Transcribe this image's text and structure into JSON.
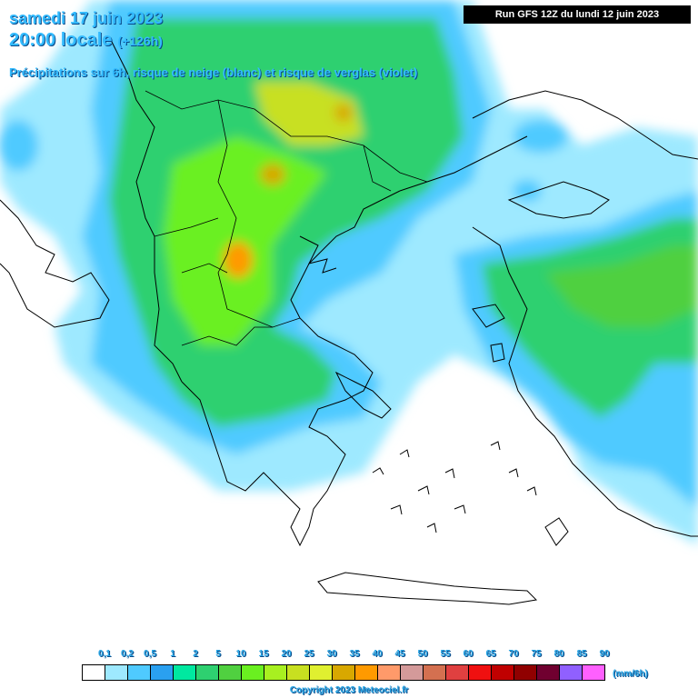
{
  "header": {
    "date_line": "samedi 17 juin 2023",
    "time_line": "20:00 locale",
    "time_offset": "(+126h)",
    "description": "Précipitations sur 6h, risque de neige (blanc) et risque de verglas (violet)",
    "run_info": "Run GFS 12Z du lundi 12 juin 2023"
  },
  "legend": {
    "ticks": [
      "0,1",
      "0,2",
      "0,5",
      "1",
      "2",
      "5",
      "10",
      "15",
      "20",
      "25",
      "30",
      "35",
      "40",
      "45",
      "50",
      "55",
      "60",
      "65",
      "70",
      "75",
      "80",
      "85",
      "90"
    ],
    "colors": [
      "#ffffff",
      "#9ee9ff",
      "#4fcaff",
      "#2aa0f0",
      "#00e8a0",
      "#2ed070",
      "#50d040",
      "#6af020",
      "#a8f020",
      "#c8e020",
      "#e0f030",
      "#d8a800",
      "#ff9a00",
      "#ff9a6a",
      "#d49a9a",
      "#d47050",
      "#e04040",
      "#f01010",
      "#c00000",
      "#900000",
      "#700030",
      "#9060ff",
      "#ff60ff"
    ],
    "unit": "(mm/6h)",
    "copyright": "Copyright 2023 Meteociel.fr"
  },
  "map": {
    "region": "Greece / Balkans / Aegean Sea",
    "snow_color": "#ffffff",
    "freezing_rain_color": "#9b30ff"
  }
}
